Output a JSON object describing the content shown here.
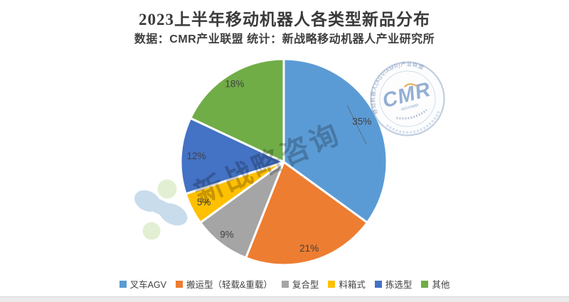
{
  "header": {
    "title": "2023上半年移动机器人各类型新品分布",
    "subtitle": "数据：CMR产业联盟 统计：新战略移动机器人产业研究所"
  },
  "chart_data": {
    "type": "pie",
    "title": "2023上半年移动机器人各类型新品分布",
    "categories": [
      "叉车AGV",
      "搬运型（轻载&重载）",
      "复合型",
      "料箱式",
      "拣选型",
      "其他"
    ],
    "values": [
      35,
      21,
      9,
      5,
      12,
      18
    ],
    "labels": [
      "35%",
      "21%",
      "9%",
      "5%",
      "12%",
      "18%"
    ],
    "unit": "%",
    "colors": [
      "#5B9BD5",
      "#ED7D31",
      "#A5A5A5",
      "#FFC000",
      "#4472C4",
      "#70AD47"
    ],
    "start_angle_deg": 0,
    "direction": "clockwise",
    "legend_position": "bottom"
  },
  "watermarks": {
    "diagonal_text": "新战略咨询",
    "badge": {
      "center_text": "CMR",
      "ring_text": "移动机器人(AGV/AMR)产业联盟",
      "sub_text": "AGV/AMR"
    }
  }
}
